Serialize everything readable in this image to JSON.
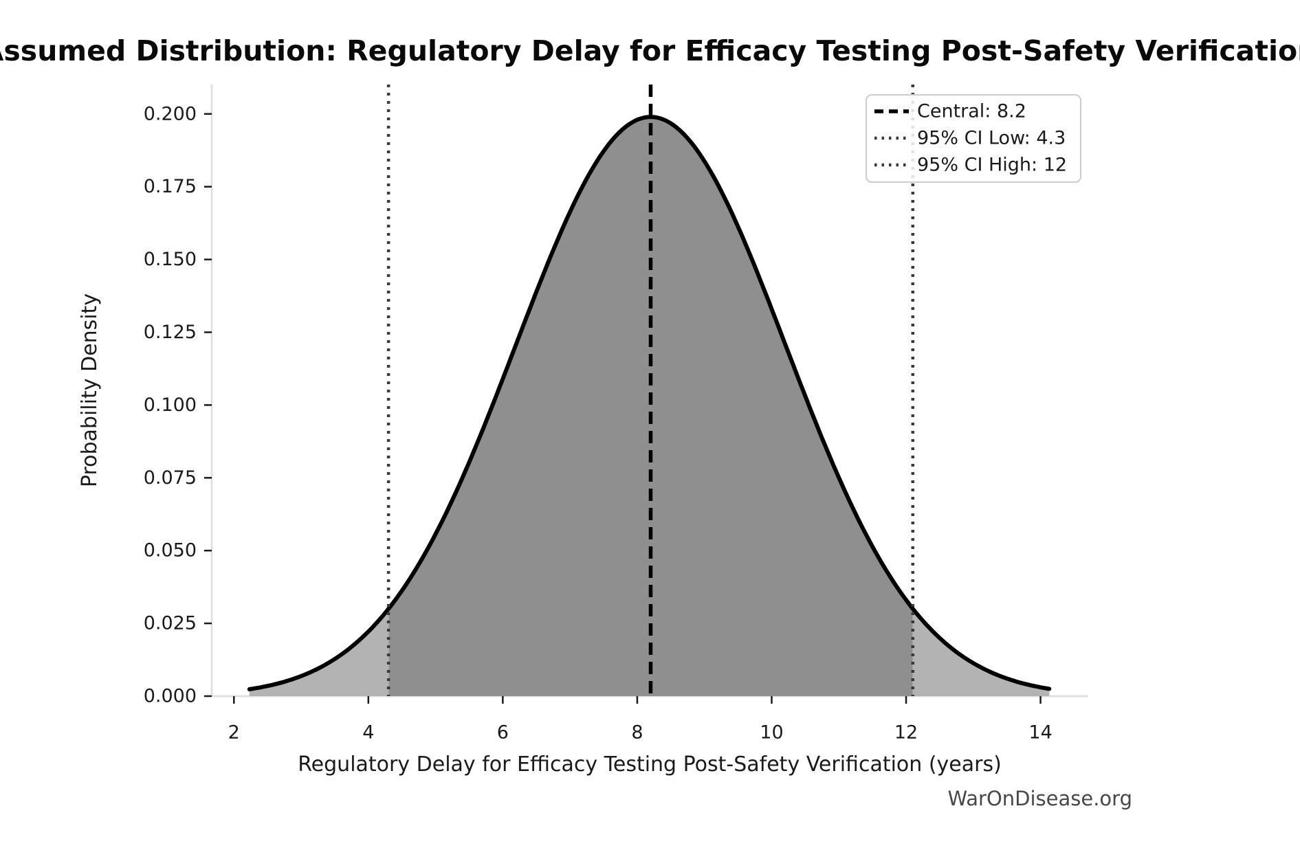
{
  "watermark": "WarOnDisease.org",
  "chart_data": {
    "type": "area",
    "title": "Assumed Distribution: Regulatory Delay for Efficacy Testing Post-Safety Verification",
    "xlabel": "Regulatory Delay for Efficacy Testing Post-Safety Verification (years)",
    "ylabel": "Probability Density",
    "x_ticks": [
      2,
      4,
      6,
      8,
      10,
      12,
      14
    ],
    "y_tick_labels": [
      "0.000",
      "0.025",
      "0.050",
      "0.075",
      "0.100",
      "0.125",
      "0.150",
      "0.175",
      "0.200"
    ],
    "xlim": [
      1.67,
      14.71
    ],
    "ylim": [
      0,
      0.2101
    ],
    "grid": false,
    "legend_position": "upper right",
    "distribution": {
      "shape": "normal",
      "mean": 8.2,
      "sd": 2.005,
      "peak_density": 0.199,
      "curve_x_start": 2.23,
      "curve_x_end": 14.13
    },
    "markers": {
      "central": {
        "value": 8.2,
        "label": "Central: 8.2",
        "style": "dashed",
        "color": "#000000"
      },
      "ci_low": {
        "value": 4.3,
        "label": "95% CI Low: 4.3",
        "style": "dotted",
        "color": "#3a3a3a"
      },
      "ci_high": {
        "value": 12.1,
        "label": "95% CI High: 12",
        "style": "dotted",
        "color": "#3a3a3a"
      }
    },
    "colors": {
      "inside_ci_fill": "#8f8f8f",
      "tail_fill": "#b3b3b3",
      "curve": "#000000"
    }
  }
}
